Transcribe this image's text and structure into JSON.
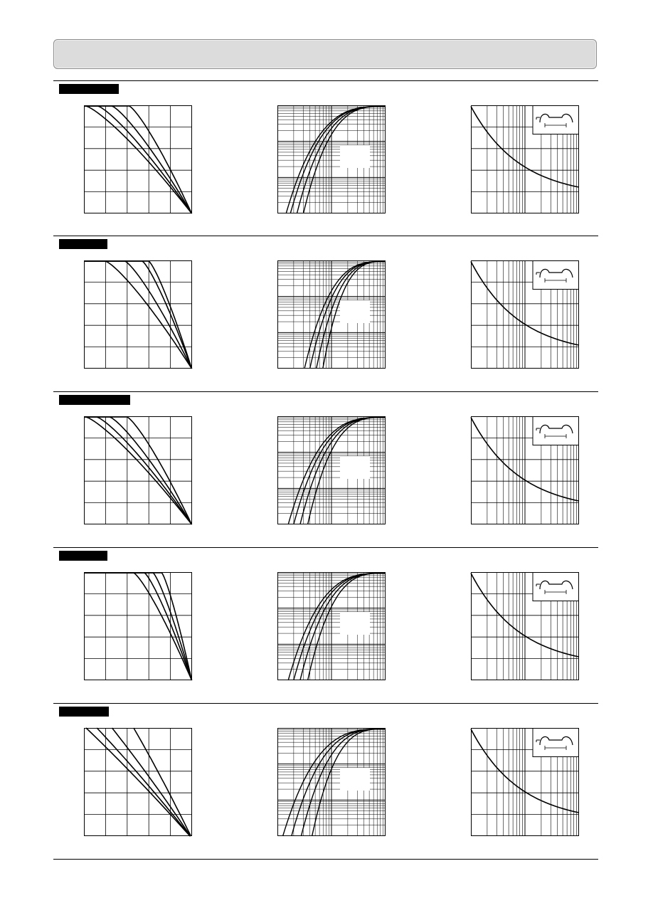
{
  "sections": [
    {
      "tag_label": "",
      "derating": [
        {
          "k": 0.02,
          "t": 0.1
        },
        {
          "k": 0.13,
          "t": 0.22
        },
        {
          "k": 0.26,
          "t": 0.35
        },
        {
          "k": 0.42,
          "t": 0.5
        }
      ],
      "fusing": [
        0.08,
        0.12,
        0.18,
        0.24
      ],
      "temp_factor": [
        0.99,
        0.15
      ]
    },
    {
      "tag_label": "",
      "derating": [
        {
          "k": 0.2,
          "t": 0.34
        },
        {
          "k": 0.38,
          "t": 0.47
        },
        {
          "k": 0.54,
          "t": 0.62
        },
        {
          "k": 0.6,
          "t": 0.7
        }
      ],
      "fusing": [
        0.25,
        0.3,
        0.36,
        0.42
      ],
      "temp_factor": [
        0.99,
        0.12
      ]
    },
    {
      "tag_label": "",
      "derating": [
        {
          "k": 0.02,
          "t": 0.06
        },
        {
          "k": 0.12,
          "t": 0.18
        },
        {
          "k": 0.24,
          "t": 0.3
        },
        {
          "k": 0.4,
          "t": 0.44
        }
      ],
      "fusing": [
        0.1,
        0.15,
        0.21,
        0.28
      ],
      "temp_factor": [
        0.99,
        0.12
      ]
    },
    {
      "tag_label": "",
      "derating": [
        {
          "k": 0.46,
          "t": 0.55
        },
        {
          "k": 0.56,
          "t": 0.63
        },
        {
          "k": 0.64,
          "t": 0.72
        },
        {
          "k": 0.72,
          "t": 0.8
        }
      ],
      "fusing": [
        0.1,
        0.15,
        0.21,
        0.28
      ],
      "temp_factor": [
        0.99,
        0.12
      ]
    },
    {
      "tag_label": "",
      "derating": [
        {
          "k": 0.0,
          "t": 0.02,
          "lin": true
        },
        {
          "k": 0.0,
          "t": 0.12,
          "lin": true
        },
        {
          "k": 0.0,
          "t": 0.26,
          "lin": true
        },
        {
          "k": 0.0,
          "t": 0.46,
          "lin": true
        }
      ],
      "fusing": [
        0.05,
        0.13,
        0.22,
        0.32
      ],
      "temp_factor": [
        0.99,
        0.12
      ]
    }
  ]
}
